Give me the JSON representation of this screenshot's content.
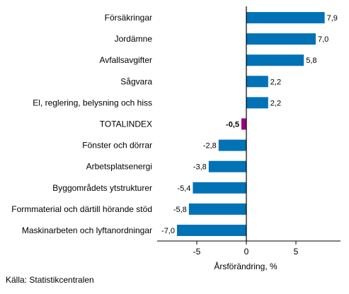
{
  "chart_data": {
    "type": "bar",
    "orientation": "horizontal",
    "categories": [
      "Försäkringar",
      "Jordämne",
      "Avfallsavgifter",
      "Sågvara",
      "El, reglering, belysning och hiss",
      "TOTALINDEX",
      "Fönster och dörrar",
      "Arbetsplatsenergi",
      "Byggområdets ytstrukturer",
      "Formmaterial och därtill hörande stöd",
      "Maskinarbeten och lyftanordningar"
    ],
    "values": [
      7.9,
      7.0,
      5.8,
      2.2,
      2.2,
      -0.5,
      -2.8,
      -3.8,
      -5.4,
      -5.8,
      -7.0
    ],
    "value_labels": [
      "7,9",
      "7,0",
      "5,8",
      "2,2",
      "2,2",
      "-0,5",
      "-2,8",
      "-3,8",
      "-5,4",
      "-5,8",
      "-7,0"
    ],
    "highlight_category": "TOTALINDEX",
    "xlabel": "Årsförändring, %",
    "xlim": [
      -9,
      9.5
    ],
    "xticks": [
      -5,
      0,
      5
    ],
    "xtick_labels": [
      "-5",
      "0",
      "5"
    ],
    "grid": false,
    "colors": {
      "bar": "#0072b5",
      "highlight": "#9b007e",
      "axis": "#000000"
    }
  },
  "source": "Källa: Statistikcentralen"
}
